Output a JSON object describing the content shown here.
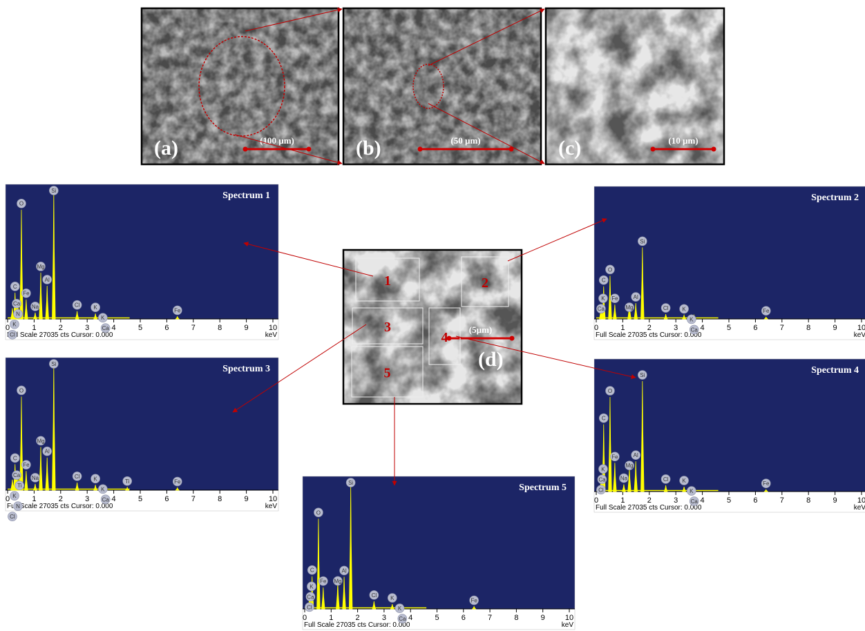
{
  "images": [
    {
      "label": "(a)",
      "scale": "(100 µm)"
    },
    {
      "label": "(b)",
      "scale": "(50 µm)"
    },
    {
      "label": "(c)",
      "scale": "(10 µm)"
    },
    {
      "label": "(d)",
      "scale": "(5µm)"
    }
  ],
  "regions": [
    "1",
    "2",
    "3",
    "4",
    "5"
  ],
  "spectrum_axis": {
    "xlim": [
      0,
      10
    ],
    "xticks": [
      0,
      1,
      2,
      3,
      4,
      5,
      6,
      7,
      8,
      9,
      10
    ],
    "ylim": [
      0,
      27035
    ],
    "unit": "keV"
  },
  "footer": "Full Scale 27035 cts Cursor: 0.000",
  "spectra": [
    {
      "title": "Spectrum 1",
      "peaks": [
        {
          "label": "Cl",
          "kev": 0.18,
          "cts": 2200
        },
        {
          "label": "K",
          "kev": 0.26,
          "cts": 2700
        },
        {
          "label": "C",
          "kev": 0.28,
          "cts": 5400
        },
        {
          "label": "Ca",
          "kev": 0.34,
          "cts": 3200
        },
        {
          "label": "N",
          "kev": 0.39,
          "cts": 3200
        },
        {
          "label": "O",
          "kev": 0.52,
          "cts": 22400
        },
        {
          "label": "Fe",
          "kev": 0.7,
          "cts": 4000
        },
        {
          "label": "Na",
          "kev": 1.04,
          "cts": 1300
        },
        {
          "label": "Mg",
          "kev": 1.25,
          "cts": 9500
        },
        {
          "label": "Al",
          "kev": 1.49,
          "cts": 6800
        },
        {
          "label": "Si",
          "kev": 1.74,
          "cts": 26200
        },
        {
          "label": "Cl",
          "kev": 2.62,
          "cts": 1600
        },
        {
          "label": "K",
          "kev": 3.31,
          "cts": 1100
        },
        {
          "label": "K",
          "kev": 3.59,
          "cts": 800
        },
        {
          "label": "Ca",
          "kev": 3.69,
          "cts": 800
        },
        {
          "label": "Fe",
          "kev": 6.4,
          "cts": 500
        }
      ]
    },
    {
      "title": "Spectrum 2",
      "peaks": [
        {
          "label": "Ca",
          "kev": 0.18,
          "cts": 2400
        },
        {
          "label": "K",
          "kev": 0.26,
          "cts": 3000
        },
        {
          "label": "C",
          "kev": 0.28,
          "cts": 6800
        },
        {
          "label": "O",
          "kev": 0.52,
          "cts": 9000
        },
        {
          "label": "Fe",
          "kev": 0.7,
          "cts": 3000
        },
        {
          "label": "Mg",
          "kev": 1.25,
          "cts": 3200
        },
        {
          "label": "Al",
          "kev": 1.49,
          "cts": 3300
        },
        {
          "label": "Si",
          "kev": 1.74,
          "cts": 14900
        },
        {
          "label": "Cl",
          "kev": 2.62,
          "cts": 1000
        },
        {
          "label": "K",
          "kev": 3.31,
          "cts": 800
        },
        {
          "label": "K",
          "kev": 3.59,
          "cts": 800
        },
        {
          "label": "Ca",
          "kev": 3.69,
          "cts": 800
        },
        {
          "label": "Fe",
          "kev": 6.4,
          "cts": 400
        }
      ]
    },
    {
      "title": "Spectrum 3",
      "peaks": [
        {
          "label": "Cl",
          "kev": 0.18,
          "cts": 2200
        },
        {
          "label": "K",
          "kev": 0.26,
          "cts": 2700
        },
        {
          "label": "C",
          "kev": 0.28,
          "cts": 5400
        },
        {
          "label": "Ca",
          "kev": 0.34,
          "cts": 3200
        },
        {
          "label": "N",
          "kev": 0.39,
          "cts": 2600
        },
        {
          "label": "O",
          "kev": 0.52,
          "cts": 19500
        },
        {
          "label": "Ti",
          "kev": 0.45,
          "cts": 3000
        },
        {
          "label": "Fe",
          "kev": 0.7,
          "cts": 4000
        },
        {
          "label": "Na",
          "kev": 1.04,
          "cts": 1300
        },
        {
          "label": "Mg",
          "kev": 1.25,
          "cts": 9000
        },
        {
          "label": "Al",
          "kev": 1.49,
          "cts": 6800
        },
        {
          "label": "Si",
          "kev": 1.74,
          "cts": 26200
        },
        {
          "label": "Cl",
          "kev": 2.62,
          "cts": 1600
        },
        {
          "label": "K",
          "kev": 3.31,
          "cts": 1100
        },
        {
          "label": "K",
          "kev": 3.59,
          "cts": 800
        },
        {
          "label": "Ca",
          "kev": 3.69,
          "cts": 800
        },
        {
          "label": "Ti",
          "kev": 4.51,
          "cts": 600
        },
        {
          "label": "Fe",
          "kev": 6.4,
          "cts": 500
        }
      ]
    },
    {
      "title": "Spectrum 4",
      "peaks": [
        {
          "label": "Cl",
          "kev": 0.18,
          "cts": 2500
        },
        {
          "label": "Ca",
          "kev": 0.22,
          "cts": 3000
        },
        {
          "label": "K",
          "kev": 0.26,
          "cts": 3400
        },
        {
          "label": "C",
          "kev": 0.28,
          "cts": 14000
        },
        {
          "label": "O",
          "kev": 0.52,
          "cts": 19700
        },
        {
          "label": "Fe",
          "kev": 0.7,
          "cts": 6000
        },
        {
          "label": "Na",
          "kev": 1.04,
          "cts": 1500
        },
        {
          "label": "Mg",
          "kev": 1.25,
          "cts": 4900
        },
        {
          "label": "Al",
          "kev": 1.49,
          "cts": 6300
        },
        {
          "label": "Si",
          "kev": 1.74,
          "cts": 23000
        },
        {
          "label": "Cl",
          "kev": 2.62,
          "cts": 1300
        },
        {
          "label": "K",
          "kev": 3.31,
          "cts": 1000
        },
        {
          "label": "K",
          "kev": 3.59,
          "cts": 800
        },
        {
          "label": "Ca",
          "kev": 3.69,
          "cts": 800
        },
        {
          "label": "Fe",
          "kev": 6.4,
          "cts": 400
        }
      ]
    },
    {
      "title": "Spectrum 5",
      "peaks": [
        {
          "label": "Cl",
          "kev": 0.18,
          "cts": 2400
        },
        {
          "label": "Ca",
          "kev": 0.22,
          "cts": 3000
        },
        {
          "label": "K",
          "kev": 0.26,
          "cts": 3400
        },
        {
          "label": "C",
          "kev": 0.28,
          "cts": 6800
        },
        {
          "label": "O",
          "kev": 0.52,
          "cts": 18800
        },
        {
          "label": "Fe",
          "kev": 0.7,
          "cts": 4500
        },
        {
          "label": "Mg",
          "kev": 1.25,
          "cts": 5500
        },
        {
          "label": "Al",
          "kev": 1.49,
          "cts": 6700
        },
        {
          "label": "Si",
          "kev": 1.74,
          "cts": 25800
        },
        {
          "label": "Cl",
          "kev": 2.62,
          "cts": 1600
        },
        {
          "label": "K",
          "kev": 3.31,
          "cts": 1000
        },
        {
          "label": "K",
          "kev": 3.59,
          "cts": 800
        },
        {
          "label": "Ca",
          "kev": 3.69,
          "cts": 800
        },
        {
          "label": "Fe",
          "kev": 6.4,
          "cts": 500
        }
      ]
    }
  ]
}
